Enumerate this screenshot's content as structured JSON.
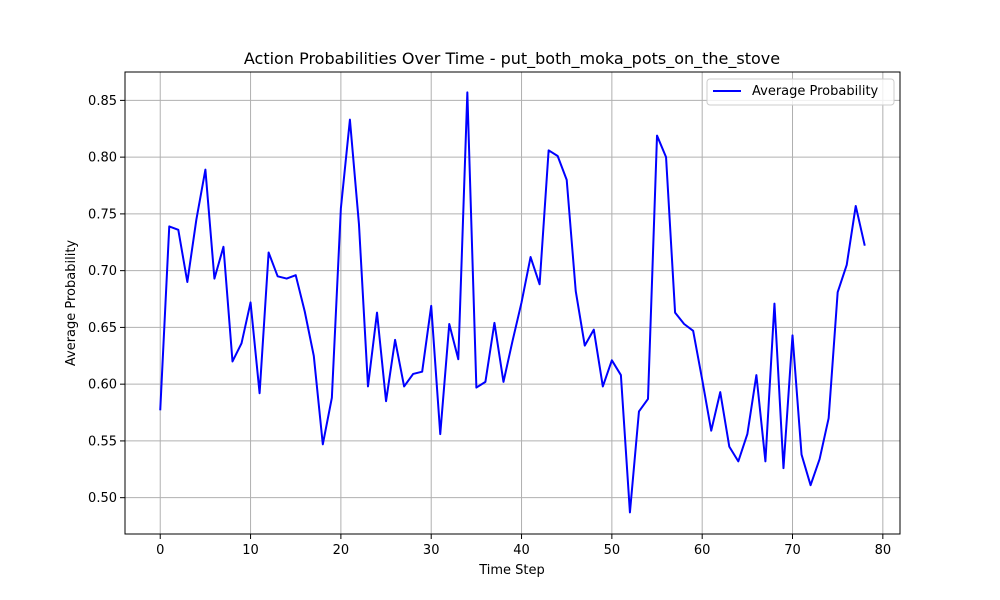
{
  "chart_data": {
    "type": "line",
    "title": "Action Probabilities Over Time - put_both_moka_pots_on_the_stove",
    "xlabel": "Time Step",
    "ylabel": "Average Probability",
    "xlim": [
      -3.9,
      81.9
    ],
    "ylim": [
      0.468,
      0.875
    ],
    "xticks": [
      0,
      10,
      20,
      30,
      40,
      50,
      60,
      70,
      80
    ],
    "yticks": [
      0.5,
      0.55,
      0.6,
      0.65,
      0.7,
      0.75,
      0.8,
      0.85
    ],
    "ytick_labels": [
      "0.50",
      "0.55",
      "0.60",
      "0.65",
      "0.70",
      "0.75",
      "0.80",
      "0.85"
    ],
    "grid": true,
    "legend_position": "upper right",
    "series": [
      {
        "name": "Average Probability",
        "color": "#0000ff",
        "x": [
          0,
          1,
          2,
          3,
          4,
          5,
          6,
          7,
          8,
          9,
          10,
          11,
          12,
          13,
          14,
          15,
          16,
          17,
          18,
          19,
          20,
          21,
          22,
          23,
          24,
          25,
          26,
          27,
          28,
          29,
          30,
          31,
          32,
          33,
          34,
          35,
          36,
          37,
          38,
          39,
          40,
          41,
          42,
          43,
          44,
          45,
          46,
          47,
          48,
          49,
          50,
          51,
          52,
          53,
          54,
          55,
          56,
          57,
          58,
          59,
          60,
          61,
          62,
          63,
          64,
          65,
          66,
          67,
          68,
          69,
          70,
          71,
          72,
          73,
          74,
          75,
          76,
          77,
          78
        ],
        "values": [
          0.577,
          0.739,
          0.736,
          0.69,
          0.745,
          0.789,
          0.693,
          0.721,
          0.62,
          0.636,
          0.672,
          0.592,
          0.716,
          0.695,
          0.693,
          0.696,
          0.664,
          0.625,
          0.547,
          0.588,
          0.755,
          0.833,
          0.741,
          0.598,
          0.663,
          0.585,
          0.639,
          0.598,
          0.609,
          0.611,
          0.669,
          0.556,
          0.653,
          0.622,
          0.857,
          0.597,
          0.602,
          0.654,
          0.602,
          0.638,
          0.672,
          0.712,
          0.688,
          0.806,
          0.801,
          0.78,
          0.682,
          0.634,
          0.648,
          0.598,
          0.621,
          0.608,
          0.487,
          0.576,
          0.587,
          0.819,
          0.8,
          0.663,
          0.653,
          0.647,
          0.604,
          0.559,
          0.593,
          0.545,
          0.532,
          0.556,
          0.608,
          0.532,
          0.671,
          0.526,
          0.643,
          0.538,
          0.511,
          0.534,
          0.57,
          0.681,
          0.705,
          0.757,
          0.722
        ]
      }
    ]
  }
}
